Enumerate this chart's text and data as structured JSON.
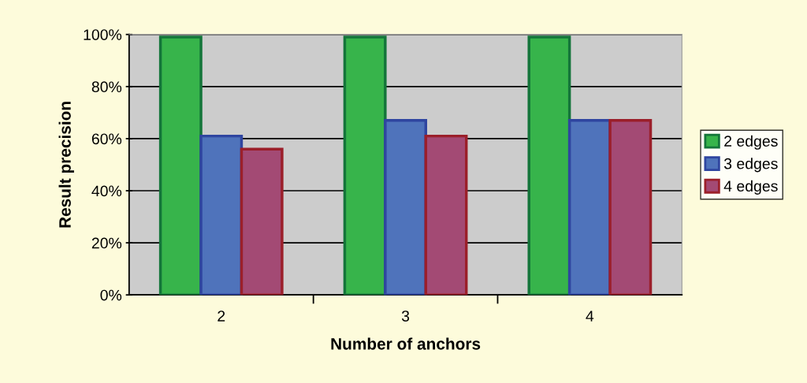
{
  "chart_data": {
    "type": "bar",
    "xlabel": "Number of anchors",
    "ylabel": "Result precision",
    "categories": [
      "2",
      "3",
      "4"
    ],
    "series": [
      {
        "name": "2 edges",
        "color": "#37b44b",
        "values": [
          99,
          99,
          99
        ]
      },
      {
        "name": "3 edges",
        "color": "#4f73bb",
        "values": [
          61,
          67,
          67
        ]
      },
      {
        "name": "4 edges",
        "color": "#a34a74",
        "values": [
          56,
          61,
          67
        ]
      }
    ],
    "ylim": [
      0,
      100
    ],
    "yticks": [
      {
        "value": 0,
        "label": "0%"
      },
      {
        "value": 20,
        "label": "20%"
      },
      {
        "value": 40,
        "label": "40%"
      },
      {
        "value": 60,
        "label": "60%"
      },
      {
        "value": 80,
        "label": "80%"
      },
      {
        "value": 100,
        "label": "100%"
      }
    ],
    "grid": "y",
    "legend": "right"
  }
}
